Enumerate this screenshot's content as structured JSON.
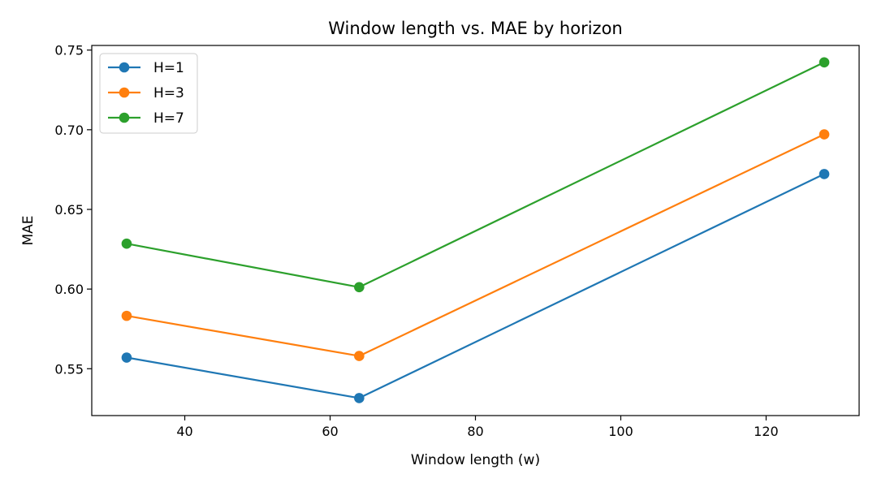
{
  "chart_data": {
    "type": "line",
    "title": "Window length vs. MAE by horizon",
    "xlabel": "Window length (w)",
    "ylabel": "MAE",
    "x": [
      32,
      64,
      128
    ],
    "xlim": [
      27.2,
      132.8
    ],
    "ylim": [
      0.5206,
      0.7529
    ],
    "xticks": [
      40,
      60,
      80,
      100,
      120
    ],
    "yticks": [
      0.55,
      0.6,
      0.65,
      0.7,
      0.75
    ],
    "ytick_labels": [
      "0.55",
      "0.60",
      "0.65",
      "0.70",
      "0.75"
    ],
    "grid": false,
    "legend_position": "top-left",
    "series": [
      {
        "name": "H=1",
        "color": "#1f77b4",
        "values": [
          0.557,
          0.5316,
          0.6722
        ]
      },
      {
        "name": "H=3",
        "color": "#ff7f0e",
        "values": [
          0.5832,
          0.558,
          0.6971
        ]
      },
      {
        "name": "H=7",
        "color": "#2ca02c",
        "values": [
          0.6285,
          0.6012,
          0.7423
        ]
      }
    ]
  }
}
